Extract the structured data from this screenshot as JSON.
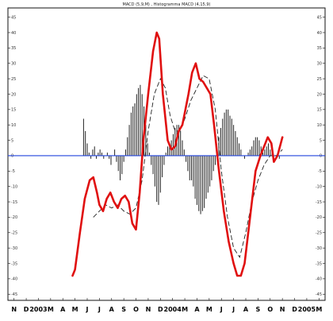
{
  "chart_data": {
    "type": "line",
    "title": "MACD (5,9,M) , Histogramma MACD (4,15,9)",
    "ylim": [
      -47,
      48
    ],
    "y_ticks": [
      45,
      40,
      35,
      30,
      25,
      20,
      15,
      10,
      5,
      0,
      -5,
      -10,
      -15,
      -20,
      -25,
      -30,
      -35,
      -40,
      -45
    ],
    "x_ticks": [
      "N",
      "D",
      "2003",
      "M",
      "A",
      "M",
      "J",
      "J",
      "A",
      "S",
      "O",
      "N",
      "D",
      "2004",
      "M",
      "A",
      "M",
      "J",
      "J",
      "A",
      "S",
      "O",
      "N",
      "D",
      "2005",
      "M"
    ],
    "zero_line_color": "#2244dd",
    "series": [
      {
        "color": "#e01010",
        "style": "solid",
        "points": [
          [
            4.8,
            -39
          ],
          [
            5.0,
            -37
          ],
          [
            5.4,
            -25
          ],
          [
            5.8,
            -14
          ],
          [
            6.2,
            -8
          ],
          [
            6.5,
            -7
          ],
          [
            6.8,
            -12
          ],
          [
            7.0,
            -16
          ],
          [
            7.3,
            -18
          ],
          [
            7.6,
            -14
          ],
          [
            7.9,
            -12
          ],
          [
            8.2,
            -15
          ],
          [
            8.5,
            -17
          ],
          [
            8.8,
            -14
          ],
          [
            9.1,
            -13
          ],
          [
            9.4,
            -15
          ],
          [
            9.7,
            -22
          ],
          [
            10.0,
            -24
          ],
          [
            10.3,
            -12
          ],
          [
            10.6,
            5
          ],
          [
            11.0,
            20
          ],
          [
            11.4,
            34
          ],
          [
            11.7,
            40
          ],
          [
            11.9,
            38
          ],
          [
            12.2,
            20
          ],
          [
            12.6,
            5
          ],
          [
            12.9,
            2
          ],
          [
            13.2,
            3
          ],
          [
            13.5,
            8
          ],
          [
            13.8,
            10
          ],
          [
            14.0,
            14
          ],
          [
            14.3,
            20
          ],
          [
            14.6,
            27
          ],
          [
            14.9,
            30
          ],
          [
            15.2,
            25
          ],
          [
            15.5,
            24
          ],
          [
            15.8,
            22
          ],
          [
            16.1,
            20
          ],
          [
            16.4,
            10
          ],
          [
            16.8,
            -5
          ],
          [
            17.2,
            -18
          ],
          [
            17.6,
            -28
          ],
          [
            18.0,
            -35
          ],
          [
            18.3,
            -39
          ],
          [
            18.6,
            -39
          ],
          [
            18.9,
            -35
          ],
          [
            19.2,
            -25
          ],
          [
            19.5,
            -15
          ],
          [
            19.8,
            -5
          ],
          [
            20.2,
            0
          ],
          [
            20.5,
            3
          ],
          [
            20.8,
            6
          ],
          [
            21.1,
            4
          ],
          [
            21.3,
            -2
          ],
          [
            21.6,
            0
          ],
          [
            22.0,
            6
          ]
        ]
      },
      {
        "color": "#222222",
        "style": "dashed",
        "points": [
          [
            6.5,
            -20
          ],
          [
            7.0,
            -18
          ],
          [
            7.5,
            -16
          ],
          [
            8.0,
            -17
          ],
          [
            8.5,
            -16
          ],
          [
            9.0,
            -18
          ],
          [
            9.5,
            -19
          ],
          [
            10.0,
            -17
          ],
          [
            10.5,
            -8
          ],
          [
            11.0,
            8
          ],
          [
            11.5,
            20
          ],
          [
            12.0,
            25
          ],
          [
            12.4,
            22
          ],
          [
            12.8,
            13
          ],
          [
            13.2,
            8
          ],
          [
            13.6,
            8
          ],
          [
            14.0,
            12
          ],
          [
            14.5,
            18
          ],
          [
            15.0,
            22
          ],
          [
            15.5,
            26
          ],
          [
            16.0,
            25
          ],
          [
            16.5,
            15
          ],
          [
            17.0,
            -5
          ],
          [
            17.5,
            -20
          ],
          [
            18.0,
            -30
          ],
          [
            18.5,
            -33
          ],
          [
            19.0,
            -25
          ],
          [
            19.5,
            -15
          ],
          [
            20.0,
            -8
          ],
          [
            20.5,
            -3
          ],
          [
            21.0,
            0
          ],
          [
            21.5,
            0
          ],
          [
            22.0,
            2
          ]
        ]
      },
      {
        "type": "histogram",
        "color": "#222222",
        "x": [
          5.7,
          5.85,
          6.0,
          6.15,
          6.3,
          6.45,
          6.6,
          6.75,
          6.9,
          7.05,
          7.2,
          7.35,
          7.5,
          7.65,
          7.8,
          7.95,
          8.1,
          8.25,
          8.4,
          8.55,
          8.7,
          8.85,
          9.0,
          9.15,
          9.3,
          9.45,
          9.6,
          9.75,
          9.9,
          10.05,
          10.2,
          10.35,
          10.5,
          10.65,
          10.8,
          10.95,
          11.1,
          11.25,
          11.4,
          11.55,
          11.7,
          11.85,
          12.0,
          12.15,
          12.3,
          12.45,
          12.6,
          12.75,
          12.9,
          13.05,
          13.2,
          13.35,
          13.5,
          13.65,
          13.8,
          13.95,
          14.1,
          14.25,
          14.4,
          14.55,
          14.7,
          14.85,
          15.0,
          15.15,
          15.3,
          15.45,
          15.6,
          15.75,
          15.9,
          16.05,
          16.2,
          16.35,
          16.5,
          16.65,
          16.8,
          16.95,
          17.1,
          17.25,
          17.4,
          17.55,
          17.7,
          17.85,
          18.0,
          18.15,
          18.3,
          18.45,
          18.6,
          18.75,
          18.9,
          19.05,
          19.2,
          19.35,
          19.5,
          19.65,
          19.8,
          19.95,
          20.1,
          20.25,
          20.4,
          20.55,
          20.7,
          20.85,
          21.0,
          21.15,
          21.3,
          21.45,
          21.6,
          21.75
        ],
        "values": [
          12,
          8,
          4,
          1,
          -1,
          2,
          3,
          -1,
          1,
          2,
          1,
          -1,
          0,
          1,
          -1,
          -3,
          0,
          2,
          -2,
          -5,
          -8,
          -6,
          -2,
          2,
          6,
          10,
          14,
          16,
          17,
          20,
          22,
          23,
          20,
          16,
          10,
          4,
          1,
          -3,
          -6,
          -10,
          -15,
          -16,
          -12,
          -7,
          -3,
          1,
          3,
          4,
          5,
          7,
          9,
          10,
          10,
          8,
          5,
          2,
          -2,
          -5,
          -8,
          -8,
          -10,
          -14,
          -16,
          -18,
          -19,
          -18,
          -17,
          -14,
          -12,
          -10,
          -8,
          -5,
          -3,
          2,
          6,
          9,
          12,
          14,
          15,
          15,
          13,
          12,
          10,
          8,
          6,
          4,
          2,
          0,
          -1,
          0,
          1,
          2,
          3,
          5,
          6,
          6,
          5,
          3,
          1,
          2,
          3,
          4,
          2,
          1,
          0,
          0,
          0,
          -1
        ]
      }
    ]
  }
}
